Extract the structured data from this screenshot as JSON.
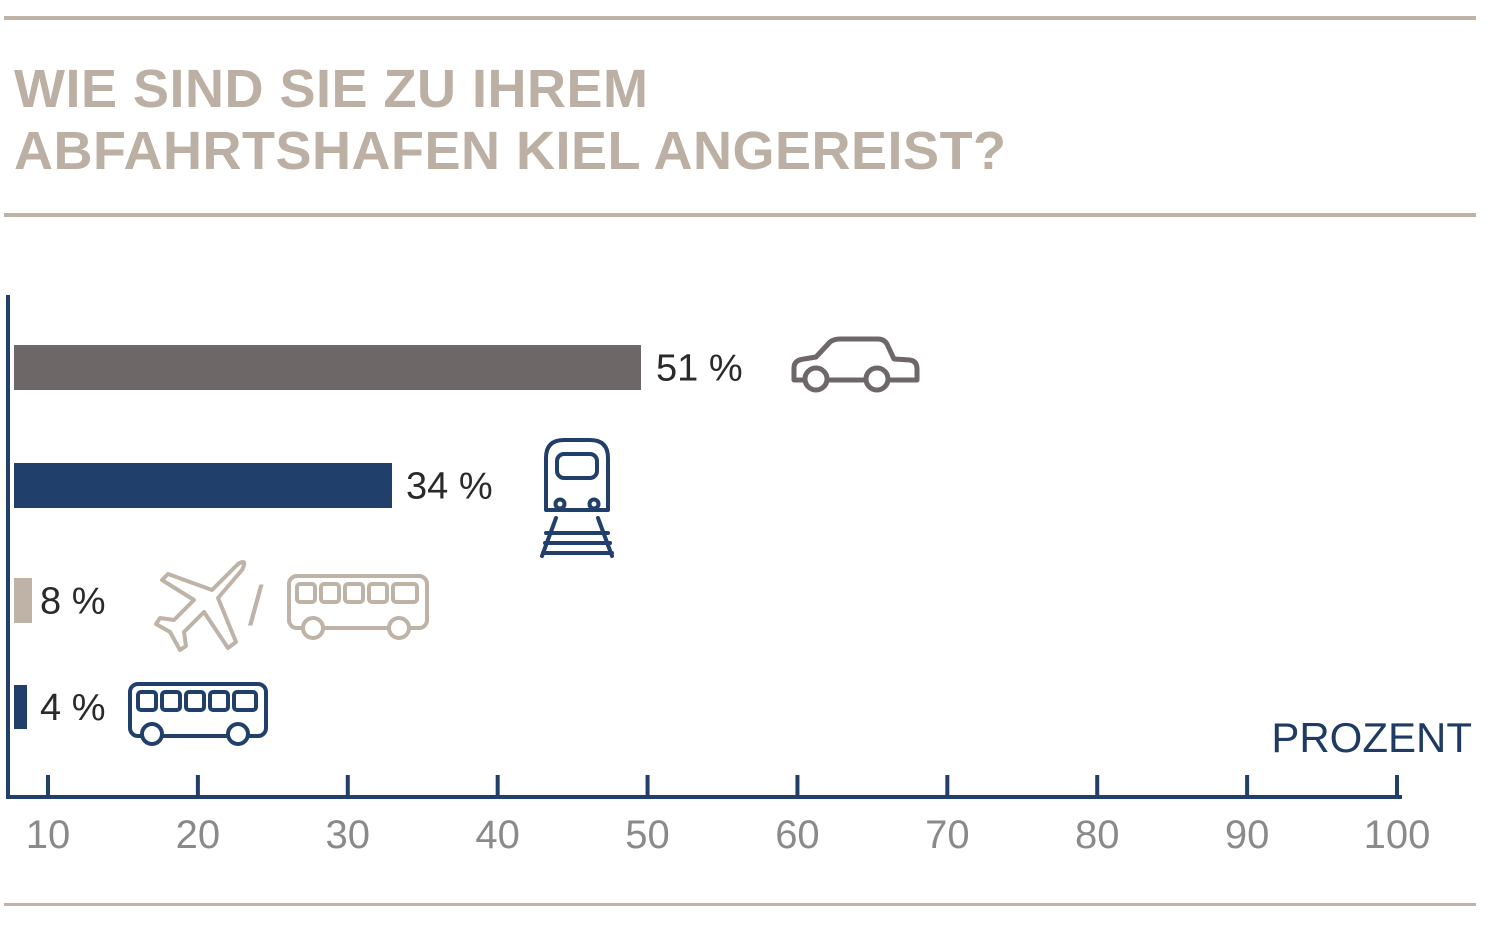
{
  "chart_data": {
    "type": "bar",
    "orientation": "horizontal",
    "title_lines": [
      "WIE SIND SIE ZU IHREM",
      "ABFAHRTSHAFEN KIEL ANGEREIST?"
    ],
    "unit_label": "PROZENT",
    "categories": [
      "car",
      "train",
      "plane-bus",
      "bus"
    ],
    "values": [
      51,
      34,
      8,
      4
    ],
    "value_labels": [
      "51 %",
      "34 %",
      "8 %",
      "4 %"
    ],
    "bar_colors": [
      "#6d6767",
      "#213f6b",
      "#bfb3a8",
      "#213f6b"
    ],
    "icons": [
      "car-icon",
      "train-icon",
      "plane-icon / bus-icon",
      "bus-icon"
    ],
    "separator": "/",
    "x_ticks": [
      10,
      20,
      30,
      40,
      50,
      60,
      70,
      80,
      90,
      100
    ],
    "xlim": [
      7,
      100
    ],
    "grid": false,
    "colors": {
      "axis": "#213f6b",
      "title": "#bcafa4",
      "rule": "#bfb3a8",
      "tick_text": "#8a8a8a"
    }
  }
}
